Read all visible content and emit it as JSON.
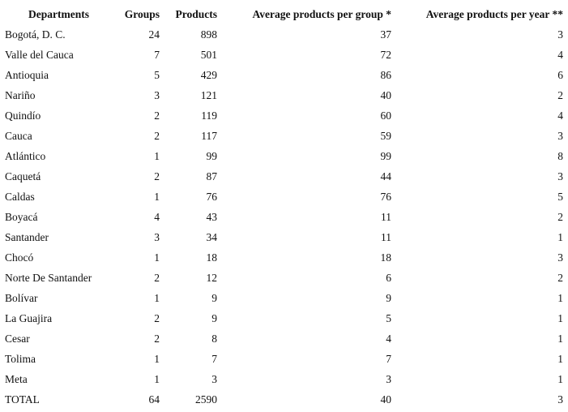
{
  "table": {
    "header": [
      "Departments",
      "Groups",
      "Products",
      "Average products per group *",
      "Average products per year **"
    ],
    "rows": [
      [
        "Bogotá, D. C.",
        24,
        898,
        37,
        3
      ],
      [
        "Valle del Cauca",
        7,
        501,
        72,
        4
      ],
      [
        "Antioquia",
        5,
        429,
        86,
        6
      ],
      [
        "Nariño",
        3,
        121,
        40,
        2
      ],
      [
        "Quindío",
        2,
        119,
        60,
        4
      ],
      [
        "Cauca",
        2,
        117,
        59,
        3
      ],
      [
        "Atlántico",
        1,
        99,
        99,
        8
      ],
      [
        "Caquetá",
        2,
        87,
        44,
        3
      ],
      [
        "Caldas",
        1,
        76,
        76,
        5
      ],
      [
        "Boyacá",
        4,
        43,
        11,
        2
      ],
      [
        "Santander",
        3,
        34,
        11,
        1
      ],
      [
        "Chocó",
        1,
        18,
        18,
        3
      ],
      [
        "Norte De Santander",
        2,
        12,
        6,
        2
      ],
      [
        "Bolívar",
        1,
        9,
        9,
        1
      ],
      [
        "La Guajira",
        2,
        9,
        5,
        1
      ],
      [
        "Cesar",
        2,
        8,
        4,
        1
      ],
      [
        "Tolima",
        1,
        7,
        7,
        1
      ],
      [
        "Meta",
        1,
        3,
        3,
        1
      ],
      [
        "TOTAL",
        64,
        2590,
        40,
        3
      ]
    ]
  }
}
